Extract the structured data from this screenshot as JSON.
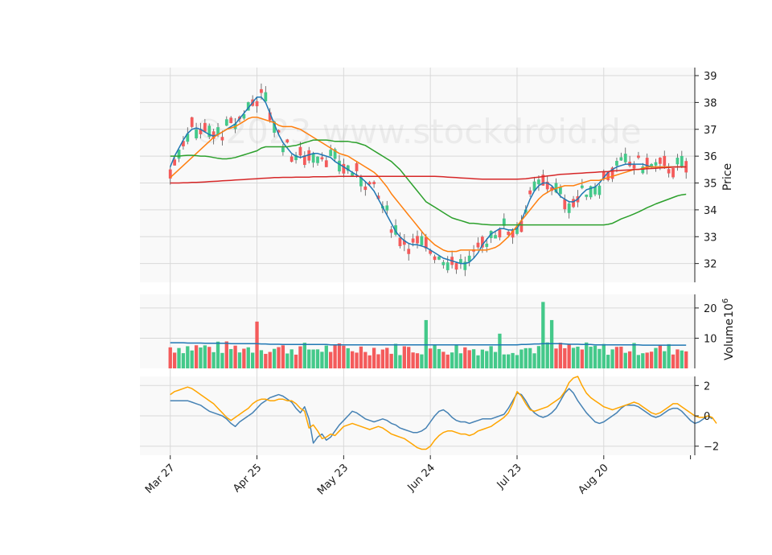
{
  "chart_data": {
    "type": "candlestick",
    "watermark": "©2023 www.stockdroid.de",
    "x_tick_labels": [
      "Mar 27",
      "Apr 25",
      "May 23",
      "Jun 24",
      "Jul 23",
      "Aug 20"
    ],
    "x_tick_indices": [
      0,
      20,
      40,
      60,
      80,
      100
    ],
    "x_range": [
      -7,
      121
    ],
    "price_panel": {
      "ylabel": "Price",
      "ylim": [
        31.3,
        39.3
      ],
      "y_ticks": [
        32,
        33,
        34,
        35,
        36,
        37,
        38,
        39
      ],
      "candles_ohlc_sample": [
        [
          36.6,
          36.8,
          36.5,
          36.6
        ],
        [
          36.7,
          37.1,
          36.6,
          37.0
        ],
        [
          37.2,
          37.6,
          37.1,
          37.4
        ],
        [
          38.5,
          39.0,
          38.2,
          38.9
        ],
        [
          35.9,
          36.2,
          35.7,
          36.1
        ],
        [
          33.9,
          34.2,
          33.8,
          34.0
        ],
        [
          32.0,
          32.3,
          31.8,
          32.1
        ],
        [
          34.1,
          34.3,
          33.9,
          34.0
        ],
        [
          35.6,
          36.0,
          35.4,
          35.7
        ],
        [
          35.7,
          35.9,
          35.0,
          35.1
        ]
      ],
      "series": [
        {
          "name": "ma_short",
          "color": "#1f77b4",
          "values": [
            35.6,
            36.0,
            36.3,
            36.6,
            36.85,
            37.0,
            37.05,
            37.0,
            36.9,
            36.8,
            36.75,
            36.8,
            36.9,
            37.0,
            37.1,
            37.2,
            37.4,
            37.6,
            37.8,
            38.0,
            38.2,
            38.2,
            38.0,
            37.6,
            37.2,
            36.8,
            36.5,
            36.3,
            36.1,
            36.0,
            35.95,
            36.0,
            36.05,
            36.1,
            36.1,
            36.05,
            36.0,
            35.95,
            35.8,
            35.7,
            35.6,
            35.5,
            35.4,
            35.3,
            35.2,
            35.05,
            34.9,
            34.7,
            34.4,
            34.1,
            33.8,
            33.5,
            33.2,
            33.0,
            32.85,
            32.75,
            32.7,
            32.7,
            32.65,
            32.6,
            32.5,
            32.4,
            32.3,
            32.2,
            32.15,
            32.1,
            32.05,
            32.0,
            32.0,
            32.05,
            32.2,
            32.4,
            32.7,
            32.9,
            33.1,
            33.2,
            33.3,
            33.3,
            33.25,
            33.25,
            33.3,
            33.6,
            34.0,
            34.4,
            34.7,
            34.9,
            35.0,
            35.0,
            34.9,
            34.7,
            34.5,
            34.4,
            34.3,
            34.3,
            34.4,
            34.6,
            34.75,
            34.8,
            34.85,
            35.0,
            35.2,
            35.4,
            35.5,
            35.6,
            35.65,
            35.7,
            35.7,
            35.7,
            35.7,
            35.7,
            35.65,
            35.6,
            35.6,
            35.6,
            35.6,
            35.6,
            35.6,
            35.6,
            35.6,
            35.6
          ]
        },
        {
          "name": "ma_mid",
          "color": "#ff7f0e",
          "values": [
            35.2,
            35.35,
            35.5,
            35.65,
            35.8,
            35.95,
            36.1,
            36.25,
            36.4,
            36.55,
            36.7,
            36.8,
            36.9,
            37.0,
            37.05,
            37.1,
            37.2,
            37.3,
            37.4,
            37.45,
            37.45,
            37.4,
            37.35,
            37.3,
            37.25,
            37.15,
            37.1,
            37.1,
            37.1,
            37.05,
            37.0,
            36.9,
            36.8,
            36.7,
            36.6,
            36.5,
            36.4,
            36.3,
            36.2,
            36.1,
            36.05,
            36.0,
            35.9,
            35.8,
            35.7,
            35.6,
            35.5,
            35.4,
            35.25,
            35.05,
            34.85,
            34.6,
            34.4,
            34.2,
            34.0,
            33.8,
            33.6,
            33.4,
            33.2,
            33.0,
            32.85,
            32.7,
            32.6,
            32.5,
            32.45,
            32.45,
            32.45,
            32.5,
            32.5,
            32.5,
            32.5,
            32.5,
            32.5,
            32.5,
            32.55,
            32.6,
            32.7,
            32.85,
            33.0,
            33.2,
            33.4,
            33.6,
            33.8,
            34.0,
            34.2,
            34.4,
            34.55,
            34.65,
            34.75,
            34.8,
            34.85,
            34.9,
            34.9,
            34.9,
            34.95,
            35.0,
            35.05,
            35.1,
            35.1,
            35.1,
            35.15,
            35.2,
            35.25,
            35.3,
            35.35,
            35.4,
            35.45,
            35.5,
            35.5,
            35.55,
            35.6,
            35.6,
            35.6,
            35.6,
            35.6,
            35.6,
            35.6,
            35.6,
            35.6,
            35.6
          ]
        },
        {
          "name": "ma_long",
          "color": "#2ca02c",
          "values": [
            36.0,
            36.0,
            36.0,
            36.02,
            36.03,
            36.03,
            36.02,
            36.0,
            36.0,
            35.98,
            35.95,
            35.92,
            35.9,
            35.9,
            35.92,
            35.95,
            36.0,
            36.05,
            36.1,
            36.15,
            36.2,
            36.3,
            36.35,
            36.35,
            36.35,
            36.35,
            36.35,
            36.35,
            36.38,
            36.4,
            36.45,
            36.5,
            36.55,
            36.6,
            36.6,
            36.6,
            36.6,
            36.58,
            36.55,
            36.55,
            36.55,
            36.55,
            36.52,
            36.5,
            36.45,
            36.4,
            36.3,
            36.2,
            36.1,
            36.0,
            35.9,
            35.8,
            35.65,
            35.5,
            35.3,
            35.1,
            34.9,
            34.7,
            34.5,
            34.3,
            34.2,
            34.1,
            34.0,
            33.9,
            33.8,
            33.7,
            33.65,
            33.6,
            33.55,
            33.5,
            33.5,
            33.48,
            33.46,
            33.45,
            33.44,
            33.44,
            33.44,
            33.44,
            33.44,
            33.44,
            33.44,
            33.44,
            33.44,
            33.44,
            33.44,
            33.44,
            33.44,
            33.44,
            33.44,
            33.44,
            33.44,
            33.44,
            33.44,
            33.44,
            33.44,
            33.44,
            33.44,
            33.44,
            33.44,
            33.44,
            33.44,
            33.46,
            33.5,
            33.58,
            33.66,
            33.72,
            33.78,
            33.85,
            33.92,
            34.0,
            34.08,
            34.15,
            34.22,
            34.28,
            34.34,
            34.4,
            34.46,
            34.52,
            34.56,
            34.58
          ]
        },
        {
          "name": "ma_200",
          "color": "#d62728",
          "values": [
            35.0,
            35.0,
            35.0,
            35.01,
            35.01,
            35.02,
            35.02,
            35.03,
            35.04,
            35.05,
            35.06,
            35.07,
            35.08,
            35.09,
            35.1,
            35.11,
            35.12,
            35.13,
            35.14,
            35.15,
            35.16,
            35.17,
            35.18,
            35.19,
            35.2,
            35.2,
            35.21,
            35.21,
            35.21,
            35.22,
            35.22,
            35.22,
            35.22,
            35.23,
            35.23,
            35.23,
            35.23,
            35.24,
            35.24,
            35.25,
            35.25,
            35.25,
            35.25,
            35.25,
            35.25,
            35.25,
            35.25,
            35.25,
            35.25,
            35.25,
            35.25,
            35.25,
            35.25,
            35.25,
            35.25,
            35.25,
            35.25,
            35.25,
            35.25,
            35.25,
            35.25,
            35.25,
            35.24,
            35.23,
            35.22,
            35.21,
            35.2,
            35.19,
            35.18,
            35.17,
            35.16,
            35.15,
            35.14,
            35.14,
            35.14,
            35.14,
            35.14,
            35.14,
            35.14,
            35.14,
            35.14,
            35.15,
            35.16,
            35.18,
            35.2,
            35.22,
            35.24,
            35.26,
            35.28,
            35.3,
            35.32,
            35.33,
            35.34,
            35.35,
            35.36,
            35.37,
            35.38,
            35.39,
            35.4,
            35.41,
            35.42,
            35.43,
            35.45,
            35.46,
            35.47,
            35.48,
            35.49,
            35.5,
            35.51,
            35.52,
            35.53,
            35.54,
            35.55,
            35.56,
            35.57,
            35.58,
            35.59,
            35.6,
            35.6,
            35.6
          ]
        }
      ]
    },
    "volume_panel": {
      "ylabel": "Volume",
      "ylabel_exponent": "6",
      "ylim": [
        0,
        24.5
      ],
      "y_ticks": [
        10,
        20
      ],
      "bars_sample": [
        {
          "i": 20,
          "value": 15.5,
          "direction": "down"
        },
        {
          "i": 59,
          "value": 16.0,
          "direction": "up"
        },
        {
          "i": 86,
          "value": 22.0,
          "direction": "up"
        },
        {
          "i": 88,
          "value": 16.0,
          "direction": "up"
        },
        {
          "i": 76,
          "value": 11.5,
          "direction": "up"
        }
      ],
      "series": [
        {
          "name": "volume_avg",
          "color": "#1f77b4",
          "values": [
            8.5,
            8.5,
            8.5,
            8.5,
            8.4,
            8.4,
            8.4,
            8.4,
            8.3,
            8.3,
            8.3,
            8.3,
            8.3,
            8.3,
            8.2,
            8.2,
            8.2,
            8.2,
            8.2,
            8.2,
            8.2,
            8.1,
            8.1,
            8.0,
            8.0,
            8.0,
            7.9,
            7.9,
            7.9,
            7.9,
            7.9,
            7.9,
            7.9,
            7.9,
            7.9,
            7.9,
            7.9,
            7.8,
            7.8,
            7.8,
            7.8,
            7.8,
            7.8,
            7.8,
            7.8,
            7.8,
            7.8,
            7.8,
            7.8,
            7.8,
            7.8,
            7.8,
            7.8,
            7.8,
            7.8,
            7.8,
            7.8,
            7.8,
            7.8,
            7.8,
            7.8,
            7.8,
            7.8,
            7.8,
            7.8,
            7.8,
            7.8,
            7.8,
            7.8,
            7.8,
            7.8,
            7.8,
            7.8,
            7.8,
            7.8,
            7.8,
            7.8,
            7.8,
            7.8,
            7.8,
            7.8,
            7.9,
            7.9,
            8.0,
            8.1,
            8.1,
            8.2,
            8.2,
            8.2,
            8.2,
            8.2,
            8.1,
            8.0,
            8.0,
            8.0,
            7.9,
            7.9,
            7.9,
            7.8,
            7.8,
            7.8,
            7.8,
            7.8,
            7.8,
            7.8,
            7.8,
            7.8,
            7.8,
            7.8,
            7.7,
            7.7,
            7.7,
            7.7,
            7.7,
            7.7,
            7.7,
            7.7,
            7.7,
            7.7,
            7.7
          ]
        }
      ]
    },
    "indicator_panel": {
      "ylim": [
        -2.6,
        2.6
      ],
      "y_ticks": [
        -2,
        0,
        2
      ],
      "series": [
        {
          "name": "line_a",
          "color": "#4682b4",
          "values": [
            1.0,
            1.0,
            1.0,
            1.0,
            1.0,
            0.9,
            0.8,
            0.7,
            0.5,
            0.3,
            0.2,
            0.1,
            0.0,
            -0.2,
            -0.5,
            -0.7,
            -0.4,
            -0.2,
            0.0,
            0.2,
            0.5,
            0.8,
            1.0,
            1.2,
            1.3,
            1.4,
            1.3,
            1.1,
            0.9,
            0.5,
            0.2,
            0.6,
            -0.2,
            -1.8,
            -1.4,
            -1.2,
            -1.6,
            -1.4,
            -1.0,
            -0.6,
            -0.3,
            0.0,
            0.3,
            0.2,
            0.0,
            -0.2,
            -0.3,
            -0.4,
            -0.3,
            -0.2,
            -0.3,
            -0.5,
            -0.6,
            -0.8,
            -0.9,
            -1.0,
            -1.1,
            -1.1,
            -1.0,
            -0.8,
            -0.4,
            0.0,
            0.3,
            0.4,
            0.2,
            -0.1,
            -0.3,
            -0.4,
            -0.4,
            -0.5,
            -0.4,
            -0.3,
            -0.2,
            -0.2,
            -0.2,
            -0.1,
            0.0,
            0.1,
            0.5,
            1.0,
            1.5,
            1.4,
            1.0,
            0.5,
            0.2,
            0.0,
            -0.1,
            0.0,
            0.2,
            0.5,
            1.0,
            1.5,
            1.8,
            1.5,
            1.0,
            0.6,
            0.2,
            -0.1,
            -0.4,
            -0.5,
            -0.4,
            -0.2,
            0.0,
            0.2,
            0.5,
            0.7,
            0.7,
            0.7,
            0.6,
            0.4,
            0.2,
            0.0,
            -0.1,
            0.0,
            0.2,
            0.4,
            0.5,
            0.5,
            0.3,
            0.0,
            -0.3,
            -0.5,
            -0.4,
            -0.2,
            0.0,
            -0.2
          ]
        },
        {
          "name": "line_b",
          "color": "#ffa500",
          "values": [
            1.4,
            1.6,
            1.7,
            1.8,
            1.9,
            1.8,
            1.6,
            1.4,
            1.2,
            1.0,
            0.8,
            0.5,
            0.2,
            -0.1,
            -0.3,
            -0.1,
            0.1,
            0.3,
            0.5,
            0.8,
            1.0,
            1.1,
            1.1,
            1.0,
            1.0,
            1.1,
            1.1,
            1.0,
            1.0,
            0.8,
            0.5,
            0.3,
            -0.8,
            -0.6,
            -1.0,
            -1.5,
            -1.4,
            -1.2,
            -1.3,
            -1.0,
            -0.7,
            -0.6,
            -0.5,
            -0.6,
            -0.7,
            -0.8,
            -0.9,
            -0.8,
            -0.7,
            -0.8,
            -1.0,
            -1.2,
            -1.3,
            -1.4,
            -1.5,
            -1.7,
            -1.9,
            -2.1,
            -2.2,
            -2.2,
            -2.0,
            -1.6,
            -1.3,
            -1.1,
            -1.0,
            -1.0,
            -1.1,
            -1.2,
            -1.2,
            -1.3,
            -1.2,
            -1.0,
            -0.9,
            -0.8,
            -0.7,
            -0.5,
            -0.3,
            -0.1,
            0.2,
            0.8,
            1.6,
            1.3,
            0.8,
            0.4,
            0.3,
            0.4,
            0.5,
            0.6,
            0.8,
            1.0,
            1.2,
            1.6,
            2.2,
            2.5,
            2.6,
            2.0,
            1.5,
            1.2,
            1.0,
            0.8,
            0.6,
            0.5,
            0.4,
            0.5,
            0.6,
            0.7,
            0.8,
            0.9,
            0.8,
            0.6,
            0.4,
            0.2,
            0.1,
            0.2,
            0.4,
            0.6,
            0.8,
            0.8,
            0.6,
            0.4,
            0.2,
            0.0,
            -0.1,
            -0.1,
            0.0,
            -0.1,
            -0.5
          ]
        }
      ]
    }
  }
}
